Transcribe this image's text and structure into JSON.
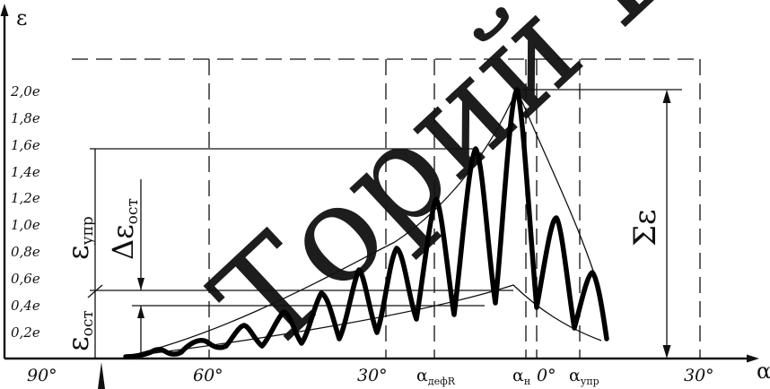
{
  "y_axis_label": "ε",
  "x_axis_label": "α",
  "y_ticks": [
    "2,0e",
    "1,8e",
    "1,6e",
    "1,4e",
    "1,2e",
    "1,0e",
    "0,8e",
    "0,6e",
    "0,4e",
    "0,2e"
  ],
  "x_ticks": [
    "90°",
    "60°",
    "30°",
    "0°",
    "30°"
  ],
  "x_markers": {
    "alpha_def": "α",
    "alpha_def_sub": "дефR",
    "alpha_n": "α",
    "alpha_n_sub": "н",
    "alpha_upr": "α",
    "alpha_upr_sub": "упр"
  },
  "annotations": {
    "eps_upr": "ε",
    "eps_upr_sub": "упр",
    "delta_eps_ost": "Δε",
    "delta_eps_ost_sub": "ост",
    "eps_ost": "ε",
    "eps_ost_sub": "ост",
    "sum_eps": "Σε"
  },
  "watermark": "Торий Ба",
  "colors": {
    "line": "#000000",
    "watermark": "#d23c3c"
  }
}
